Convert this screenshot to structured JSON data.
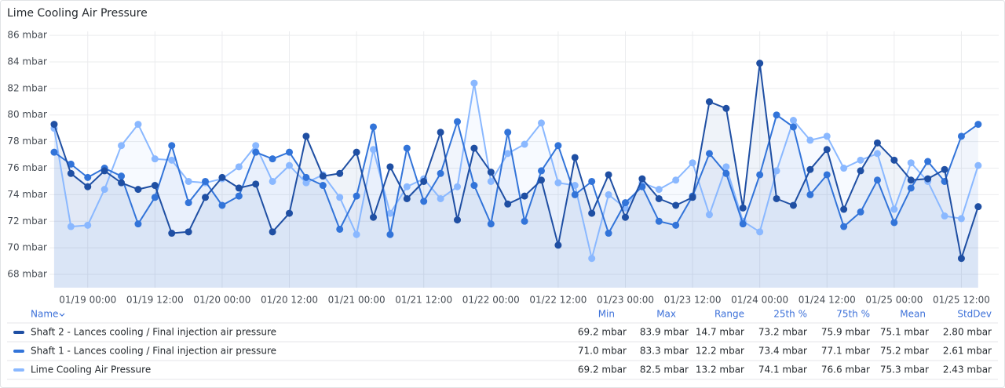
{
  "chart_data": {
    "type": "line",
    "title": "Lime Cooling Air Pressure",
    "x": [
      "01/18 18:00",
      "01/18 21:00",
      "01/19 00:00",
      "01/19 03:00",
      "01/19 06:00",
      "01/19 09:00",
      "01/19 12:00",
      "01/19 15:00",
      "01/19 18:00",
      "01/19 21:00",
      "01/20 00:00",
      "01/20 03:00",
      "01/20 06:00",
      "01/20 09:00",
      "01/20 12:00",
      "01/20 15:00",
      "01/20 18:00",
      "01/20 21:00",
      "01/21 00:00",
      "01/21 03:00",
      "01/21 06:00",
      "01/21 09:00",
      "01/21 12:00",
      "01/21 15:00",
      "01/21 18:00",
      "01/21 21:00",
      "01/22 00:00",
      "01/22 03:00",
      "01/22 06:00",
      "01/22 09:00",
      "01/22 12:00",
      "01/22 15:00",
      "01/22 18:00",
      "01/22 21:00",
      "01/23 00:00",
      "01/23 03:00",
      "01/23 06:00",
      "01/23 09:00",
      "01/23 12:00",
      "01/23 15:00",
      "01/23 18:00",
      "01/23 21:00",
      "01/24 00:00",
      "01/24 03:00",
      "01/24 06:00",
      "01/24 09:00",
      "01/24 12:00",
      "01/24 15:00",
      "01/24 18:00",
      "01/24 21:00",
      "01/25 00:00",
      "01/25 03:00",
      "01/25 06:00",
      "01/25 09:00",
      "01/25 12:00",
      "01/25 15:00"
    ],
    "xlim": [
      "01/18 17:10",
      "01/25 18:40"
    ],
    "xticks": [
      "01/19 00:00",
      "01/19 12:00",
      "01/20 00:00",
      "01/20 12:00",
      "01/21 00:00",
      "01/21 12:00",
      "01/22 00:00",
      "01/22 12:00",
      "01/23 00:00",
      "01/23 12:00",
      "01/24 00:00",
      "01/24 12:00",
      "01/25 00:00",
      "01/25 12:00"
    ],
    "ylim": [
      67,
      86.3
    ],
    "yticks": [
      {
        "value": 68,
        "label": "68 mbar"
      },
      {
        "value": 70,
        "label": "70 mbar"
      },
      {
        "value": 72,
        "label": "72 mbar"
      },
      {
        "value": 74,
        "label": "74 mbar"
      },
      {
        "value": 76,
        "label": "76 mbar"
      },
      {
        "value": 78,
        "label": "78 mbar"
      },
      {
        "value": 80,
        "label": "80 mbar"
      },
      {
        "value": 82,
        "label": "82 mbar"
      },
      {
        "value": 84,
        "label": "84 mbar"
      },
      {
        "value": 86,
        "label": "86 mbar"
      }
    ],
    "grid": true,
    "legend_columns": [
      "Name",
      "Min",
      "Max",
      "Range",
      "25th %",
      "75th %",
      "Mean",
      "StdDev"
    ],
    "series": [
      {
        "name": "Shaft 2 - Lances cooling / Final injection air pressure",
        "color": "#1f4fa3",
        "values": [
          79.3,
          75.6,
          74.6,
          75.8,
          74.9,
          74.4,
          74.7,
          71.1,
          71.2,
          73.8,
          75.3,
          74.5,
          74.8,
          71.2,
          72.6,
          78.4,
          75.4,
          75.6,
          77.2,
          72.3,
          76.1,
          73.7,
          75.0,
          78.7,
          72.1,
          77.5,
          75.7,
          73.3,
          73.9,
          75.1,
          70.2,
          76.8,
          72.6,
          75.5,
          72.3,
          75.2,
          73.7,
          73.2,
          73.8,
          81.0,
          80.5,
          73.0,
          83.9,
          73.7,
          73.2,
          75.9,
          77.4,
          72.9,
          75.8,
          77.9,
          76.6,
          75.1,
          75.2,
          75.9,
          69.2,
          73.1
        ],
        "stats": [
          "69.2 mbar",
          "83.9 mbar",
          "14.7 mbar",
          "73.2 mbar",
          "75.9 mbar",
          "75.1 mbar",
          "2.80 mbar"
        ]
      },
      {
        "name": "Shaft 1 - Lances cooling / Final injection air pressure",
        "color": "#3274d9",
        "values": [
          77.2,
          76.3,
          75.3,
          76.0,
          75.4,
          71.8,
          73.8,
          77.7,
          73.4,
          75.0,
          73.2,
          73.9,
          77.2,
          76.7,
          77.2,
          75.3,
          74.7,
          71.4,
          73.9,
          79.1,
          71.0,
          77.5,
          73.5,
          75.6,
          79.5,
          74.7,
          71.8,
          78.7,
          72.0,
          75.8,
          77.7,
          74.0,
          75.0,
          71.1,
          73.4,
          74.6,
          72.0,
          71.7,
          73.9,
          77.1,
          75.6,
          71.8,
          75.5,
          80.0,
          79.1,
          74.0,
          75.5,
          71.6,
          72.7,
          75.1,
          71.9,
          74.5,
          76.5,
          75.0,
          78.4,
          79.3
        ],
        "stats": [
          "71.0 mbar",
          "83.3 mbar",
          "12.2 mbar",
          "73.4 mbar",
          "77.1 mbar",
          "75.2 mbar",
          "2.61 mbar"
        ]
      },
      {
        "name": "Lime Cooling Air Pressure",
        "color": "#8ab8ff",
        "values": [
          79.0,
          71.6,
          71.7,
          74.4,
          77.7,
          79.3,
          76.7,
          76.6,
          75.0,
          74.9,
          75.2,
          76.1,
          77.7,
          75.0,
          76.2,
          74.9,
          75.5,
          73.8,
          71.0,
          77.4,
          72.6,
          74.6,
          75.2,
          73.7,
          74.6,
          82.4,
          75.0,
          77.1,
          77.8,
          79.4,
          74.9,
          74.7,
          69.2,
          74.0,
          73.0,
          74.9,
          74.4,
          75.1,
          76.4,
          72.5,
          76.1,
          72.0,
          71.2,
          75.8,
          79.6,
          78.1,
          78.4,
          76.0,
          76.6,
          77.1,
          72.9,
          76.4,
          75.0,
          72.4,
          72.2,
          76.2
        ],
        "stats": [
          "69.2 mbar",
          "82.5 mbar",
          "13.2 mbar",
          "74.1 mbar",
          "76.6 mbar",
          "75.3 mbar",
          "2.43 mbar"
        ]
      }
    ]
  }
}
